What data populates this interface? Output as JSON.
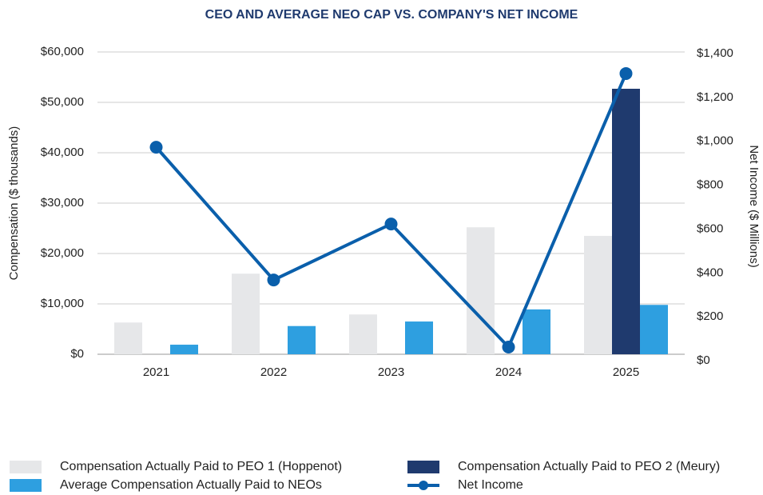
{
  "chart_data": {
    "type": "bar",
    "title": "CEO AND AVERAGE NEO CAP VS. COMPANY'S NET INCOME",
    "y_label": "Compensation ($ thousands)",
    "y2_label": "Net Income ($ Millions)",
    "categories": [
      "2021",
      "2022",
      "2023",
      "2024",
      "2025"
    ],
    "series": [
      {
        "name": "Compensation Actually Paid to PEO 1 (Hoppenot)",
        "color": "#e6e7e9",
        "type": "bar",
        "values": [
          6300,
          16000,
          7900,
          25200,
          23500
        ]
      },
      {
        "name": "Compensation Actually Paid to PEO 2 (Meury)",
        "color": "#1f3a6e",
        "type": "bar",
        "values": [
          null,
          null,
          null,
          null,
          52700
        ]
      },
      {
        "name": "Average Compensation Actually Paid to NEOs",
        "color": "#2e9fe0",
        "type": "bar",
        "values": [
          1900,
          5600,
          6500,
          8900,
          9800
        ]
      },
      {
        "name": "Net Income",
        "color": "#0a5fab",
        "type": "line",
        "axis": "y2",
        "values": [
          973,
          368,
          623,
          62,
          1309
        ]
      }
    ],
    "ylim": [
      0,
      60000
    ],
    "yticks": [
      {
        "value": 0,
        "label": "$0"
      },
      {
        "value": 10000,
        "label": "$10,000"
      },
      {
        "value": 20000,
        "label": "$20,000"
      },
      {
        "value": 30000,
        "label": "$30,000"
      },
      {
        "value": 40000,
        "label": "$40,000"
      },
      {
        "value": 50000,
        "label": "$50,000"
      },
      {
        "value": 60000,
        "label": "$60,000"
      }
    ],
    "y2lim": [
      0,
      1400
    ],
    "y2ticks": [
      {
        "value": 0,
        "label": "$0"
      },
      {
        "value": 200,
        "label": "$200"
      },
      {
        "value": 400,
        "label": "$400"
      },
      {
        "value": 600,
        "label": "$600"
      },
      {
        "value": 800,
        "label": "$800"
      },
      {
        "value": 1000,
        "label": "$1,000"
      },
      {
        "value": 1200,
        "label": "$1,200"
      },
      {
        "value": 1400,
        "label": "$1,400"
      }
    ],
    "grid": true,
    "legend": "bottom"
  }
}
